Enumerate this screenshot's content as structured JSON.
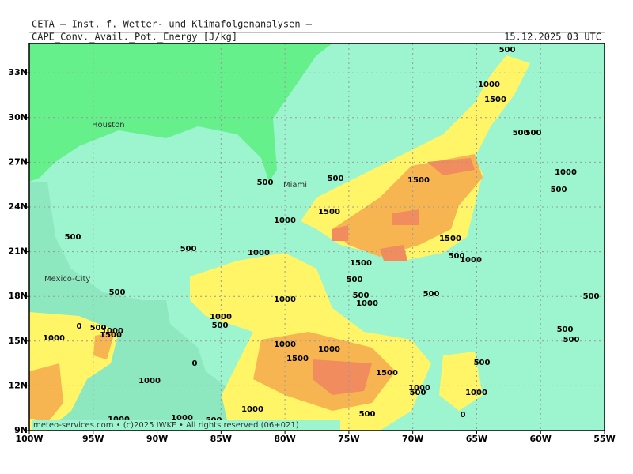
{
  "header": {
    "institute": "CETA — Inst. f. Wetter- und Klimafolgenanalysen —",
    "parameter": "CAPE_Conv._Avail._Pot._Energy [J/kg]",
    "valid_time": "15.12.2025 03 UTC"
  },
  "map": {
    "lon_labels": [
      "100W",
      "95W",
      "90W",
      "85W",
      "80W",
      "75W",
      "70W",
      "65W",
      "60W",
      "55W"
    ],
    "lat_labels": [
      "9N",
      "12N",
      "15N",
      "18N",
      "21N",
      "24N",
      "27N",
      "30N",
      "33N"
    ],
    "places": [
      "Houston",
      "Miami",
      "Mexico-City"
    ],
    "contour_labels": [
      "500",
      "1000",
      "1500",
      "500",
      "500",
      "1000",
      "500",
      "1500",
      "500",
      "500",
      "1500",
      "1000",
      "500",
      "500",
      "1000",
      "1500",
      "500",
      "1000",
      "1500",
      "500",
      "500",
      "1000",
      "500",
      "500",
      "1000",
      "500",
      "1000",
      "500",
      "0",
      "500",
      "1000",
      "1500",
      "1000",
      "500",
      "500",
      "1000",
      "1000",
      "1500",
      "0",
      "500",
      "1500",
      "1000",
      "1000",
      "500",
      "1000",
      "1000",
      "500",
      "0",
      "1000",
      "1000",
      "500"
    ]
  },
  "footer": {
    "credit": "meteo-services.com • (c)2025 IWKF • All rights reserved (06+021)"
  }
}
